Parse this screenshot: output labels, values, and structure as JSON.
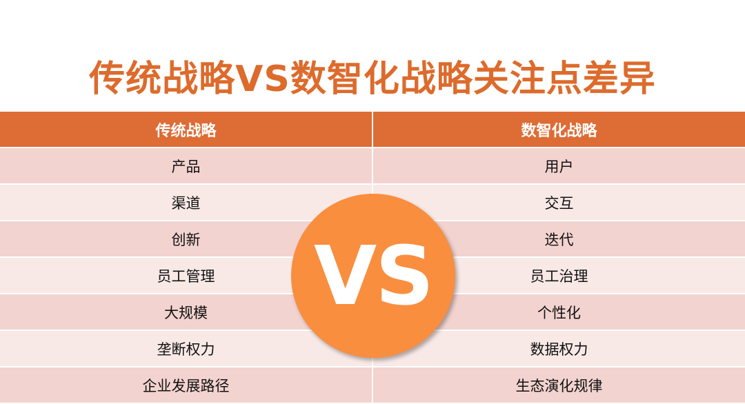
{
  "title": "传统战略VS数智化战略关注点差异",
  "colors": {
    "title": "#dd6b2c",
    "header": "#de6c35",
    "row_dark": "#f2d3cf",
    "row_light": "#f8e9e6",
    "vs_circle": "#f98e3f"
  },
  "table": {
    "headers": [
      "传统战略",
      "数智化战略"
    ],
    "rows": [
      [
        "产品",
        "用户"
      ],
      [
        "渠道",
        "交互"
      ],
      [
        "创新",
        "迭代"
      ],
      [
        "员工管理",
        "员工治理"
      ],
      [
        "大规模",
        "个性化"
      ],
      [
        "垄断权力",
        "数据权力"
      ],
      [
        "企业发展路径",
        "生态演化规律"
      ]
    ]
  },
  "badge": "VS"
}
